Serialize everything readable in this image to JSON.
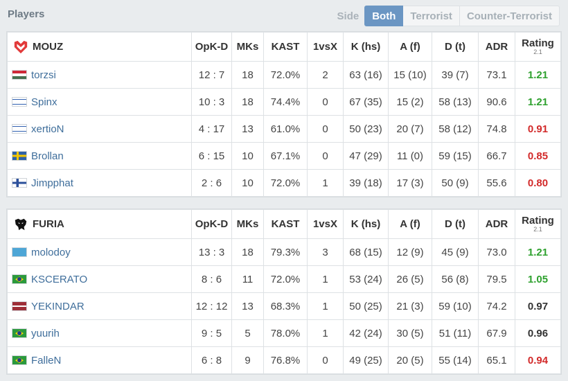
{
  "header": {
    "title": "Players",
    "side_label": "Side",
    "sides": [
      "Both",
      "Terrorist",
      "Counter-Terrorist"
    ],
    "active_side": "Both"
  },
  "columns": [
    "OpK-D",
    "MKs",
    "KAST",
    "1vsX",
    "K (hs)",
    "A (f)",
    "D (t)",
    "ADR",
    "Rating"
  ],
  "rating_version": "2.1",
  "colors": {
    "good": "#2fa12f",
    "bad": "#d22a2a",
    "neutral": "#333333",
    "accent": "#6b96c3",
    "link": "#3f6e9b"
  },
  "teams": [
    {
      "name": "MOUZ",
      "logo_icon": "mouz-logo-icon",
      "players": [
        {
          "name": "torzsi",
          "flag": "hu",
          "opkd": "12 : 7",
          "mks": "18",
          "kast": "72.0%",
          "vsx": "2",
          "khs": "63 (16)",
          "af": "15 (10)",
          "dt": "39 (7)",
          "adr": "73.1",
          "rating": "1.21",
          "rating_class": "good"
        },
        {
          "name": "Spinx",
          "flag": "il",
          "opkd": "10 : 3",
          "mks": "18",
          "kast": "74.4%",
          "vsx": "0",
          "khs": "67 (35)",
          "af": "15 (2)",
          "dt": "58 (13)",
          "adr": "90.6",
          "rating": "1.21",
          "rating_class": "good"
        },
        {
          "name": "xertioN",
          "flag": "il",
          "opkd": "4 : 17",
          "mks": "13",
          "kast": "61.0%",
          "vsx": "0",
          "khs": "50 (23)",
          "af": "20 (7)",
          "dt": "58 (12)",
          "adr": "74.8",
          "rating": "0.91",
          "rating_class": "bad"
        },
        {
          "name": "Brollan",
          "flag": "se",
          "opkd": "6 : 15",
          "mks": "10",
          "kast": "67.1%",
          "vsx": "0",
          "khs": "47 (29)",
          "af": "11 (0)",
          "dt": "59 (15)",
          "adr": "66.7",
          "rating": "0.85",
          "rating_class": "bad"
        },
        {
          "name": "Jimpphat",
          "flag": "fi",
          "opkd": "2 : 6",
          "mks": "10",
          "kast": "72.0%",
          "vsx": "1",
          "khs": "39 (18)",
          "af": "17 (3)",
          "dt": "50 (9)",
          "adr": "55.6",
          "rating": "0.80",
          "rating_class": "bad"
        }
      ]
    },
    {
      "name": "FURIA",
      "logo_icon": "furia-panther-logo-icon",
      "players": [
        {
          "name": "molodoy",
          "flag": "kz",
          "opkd": "13 : 3",
          "mks": "18",
          "kast": "79.3%",
          "vsx": "3",
          "khs": "68 (15)",
          "af": "12 (9)",
          "dt": "45 (9)",
          "adr": "73.0",
          "rating": "1.21",
          "rating_class": "good"
        },
        {
          "name": "KSCERATO",
          "flag": "br",
          "opkd": "8 : 6",
          "mks": "11",
          "kast": "72.0%",
          "vsx": "1",
          "khs": "53 (24)",
          "af": "26 (5)",
          "dt": "56 (8)",
          "adr": "79.5",
          "rating": "1.05",
          "rating_class": "good"
        },
        {
          "name": "YEKINDAR",
          "flag": "lv",
          "opkd": "12 : 12",
          "mks": "13",
          "kast": "68.3%",
          "vsx": "1",
          "khs": "50 (25)",
          "af": "21 (3)",
          "dt": "59 (10)",
          "adr": "74.2",
          "rating": "0.97",
          "rating_class": "neutral"
        },
        {
          "name": "yuurih",
          "flag": "br",
          "opkd": "9 : 5",
          "mks": "5",
          "kast": "78.0%",
          "vsx": "1",
          "khs": "42 (24)",
          "af": "30 (5)",
          "dt": "51 (11)",
          "adr": "67.9",
          "rating": "0.96",
          "rating_class": "neutral"
        },
        {
          "name": "FalleN",
          "flag": "br",
          "opkd": "6 : 8",
          "mks": "9",
          "kast": "76.8%",
          "vsx": "0",
          "khs": "49 (25)",
          "af": "20 (5)",
          "dt": "55 (14)",
          "adr": "65.1",
          "rating": "0.94",
          "rating_class": "bad"
        }
      ]
    }
  ]
}
